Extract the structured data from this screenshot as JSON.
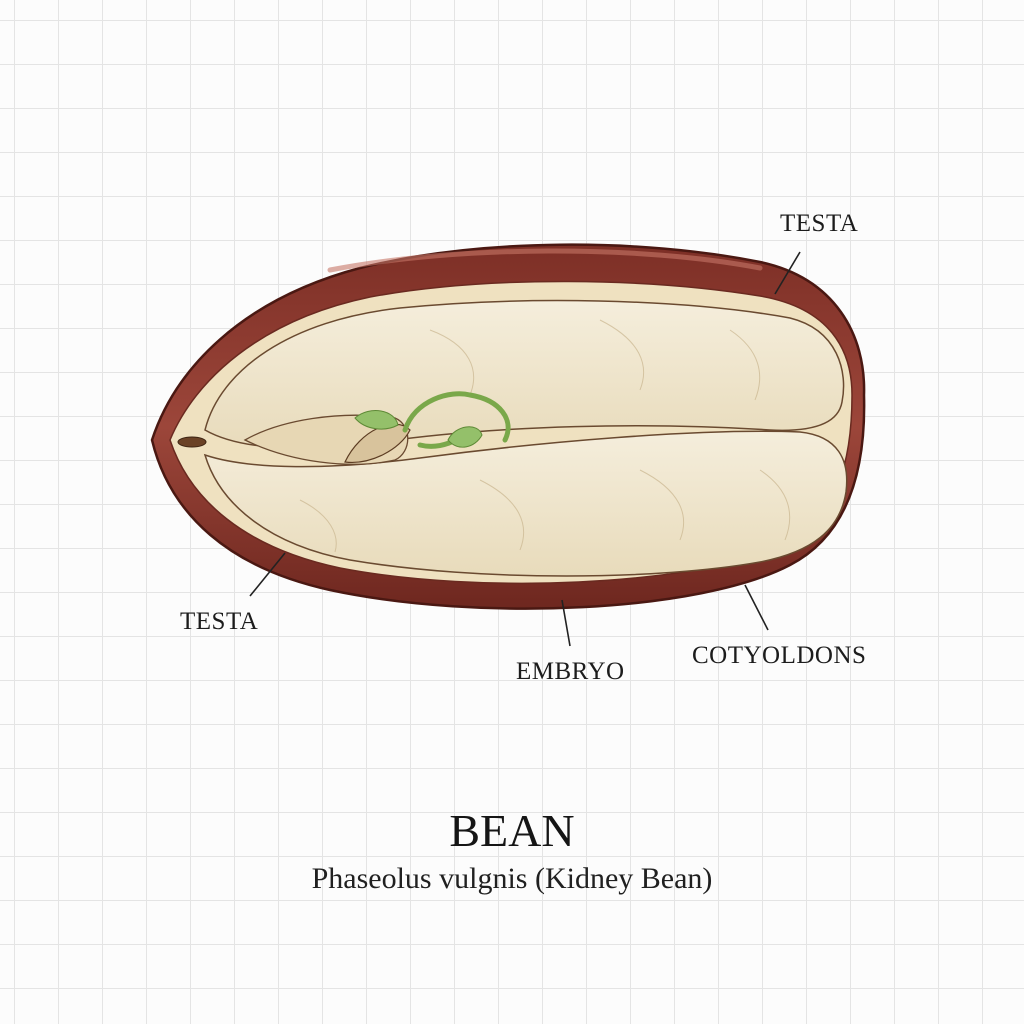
{
  "labels": {
    "testa_top": "TESTA",
    "testa_bottom": "TESTA",
    "embryo": "EMBRYO",
    "cotyledons": "COTYOLDONS"
  },
  "title": "BEAN",
  "subtitle": "Phaseolus vulgnis (Kidney Bean)",
  "colors": {
    "seed_coat": "#8e3a2e",
    "seed_coat_dark": "#5e2119",
    "cotyledon": "#f1e7cf",
    "embryo_shoot": "#8dbb5a",
    "grid": "#e4e4e4"
  }
}
